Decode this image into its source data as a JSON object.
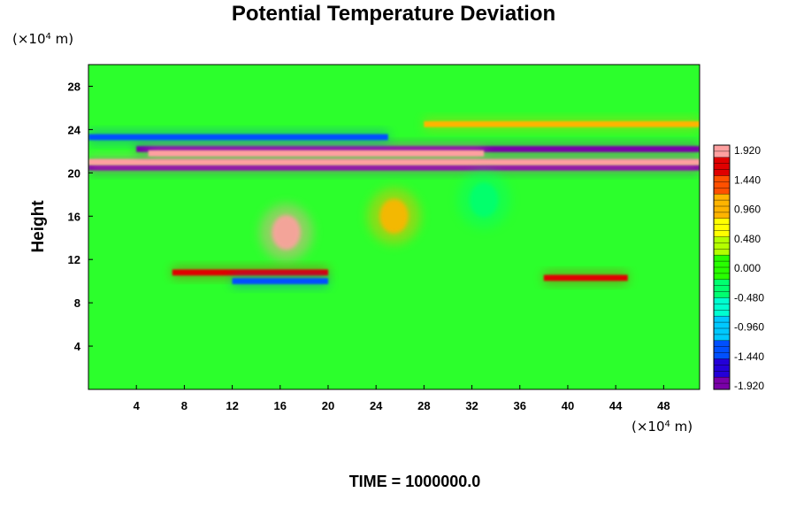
{
  "chart_data": {
    "type": "heatmap",
    "title": "Potential Temperature Deviation",
    "ylabel": "Height",
    "xlabel": "",
    "x_unit": {
      "prefix": "(×10",
      "exp": "4",
      "suffix": " m)"
    },
    "y_unit": {
      "prefix": "(×10",
      "exp": "4",
      "suffix": " m)"
    },
    "xlim": [
      0,
      51
    ],
    "ylim": [
      0,
      30
    ],
    "x_ticks": [
      4,
      8,
      12,
      16,
      20,
      24,
      28,
      32,
      36,
      40,
      44,
      48
    ],
    "x_tick_labels": [
      "4",
      "8",
      "12",
      "16",
      "20",
      "24",
      "28",
      "32",
      "36",
      "40",
      "44",
      "48"
    ],
    "y_ticks": [
      4,
      8,
      12,
      16,
      20,
      24,
      28
    ],
    "y_tick_labels": [
      "4",
      "8",
      "12",
      "16",
      "20",
      "24",
      "28"
    ],
    "colorbar": {
      "min": -1.92,
      "max": 1.92,
      "levels": 40,
      "tick_values": [
        1.92,
        1.44,
        0.96,
        0.48,
        0.0,
        -0.48,
        -0.96,
        -1.44,
        -1.92
      ],
      "tick_labels": [
        "1.920",
        "1.440",
        "0.960",
        "0.480",
        "0.000",
        "-0.480",
        "-0.960",
        "-1.440",
        "-1.920"
      ],
      "colors": [
        "#7a00a8",
        "#2400d8",
        "#0050ff",
        "#00c8ff",
        "#00ffd0",
        "#00ff70",
        "#28ff00",
        "#b4ff00",
        "#ffff00",
        "#ffb400",
        "#ff5000",
        "#e00000",
        "#ffa0a0"
      ]
    },
    "grid": false,
    "features": [
      {
        "kind": "band",
        "x": [
          0,
          51
        ],
        "y": 20.5,
        "value": -1.92
      },
      {
        "kind": "band",
        "x": [
          0,
          51
        ],
        "y": 21.0,
        "value": 1.92
      },
      {
        "kind": "band",
        "x": [
          4,
          51
        ],
        "y": 22.2,
        "value": -1.92
      },
      {
        "kind": "band",
        "x": [
          5,
          33
        ],
        "y": 21.8,
        "value": 1.92
      },
      {
        "kind": "band",
        "x": [
          0,
          25
        ],
        "y": 23.3,
        "value": -1.44
      },
      {
        "kind": "band",
        "x": [
          28,
          51
        ],
        "y": 24.5,
        "value": 0.96
      },
      {
        "kind": "blob",
        "x": 16.5,
        "y": 14.5,
        "value": 1.92
      },
      {
        "kind": "band",
        "x": [
          7,
          20
        ],
        "y": 10.8,
        "value": 1.44
      },
      {
        "kind": "band",
        "x": [
          12,
          20
        ],
        "y": 10.0,
        "value": -1.44
      },
      {
        "kind": "band",
        "x": [
          38,
          45
        ],
        "y": 10.3,
        "value": 1.44
      },
      {
        "kind": "blob",
        "x": 25.5,
        "y": 16.0,
        "value": 0.96
      },
      {
        "kind": "blob",
        "x": 33,
        "y": 17.5,
        "value": -0.48
      }
    ]
  },
  "footer": {
    "time_label": "TIME = 1000000.0"
  }
}
